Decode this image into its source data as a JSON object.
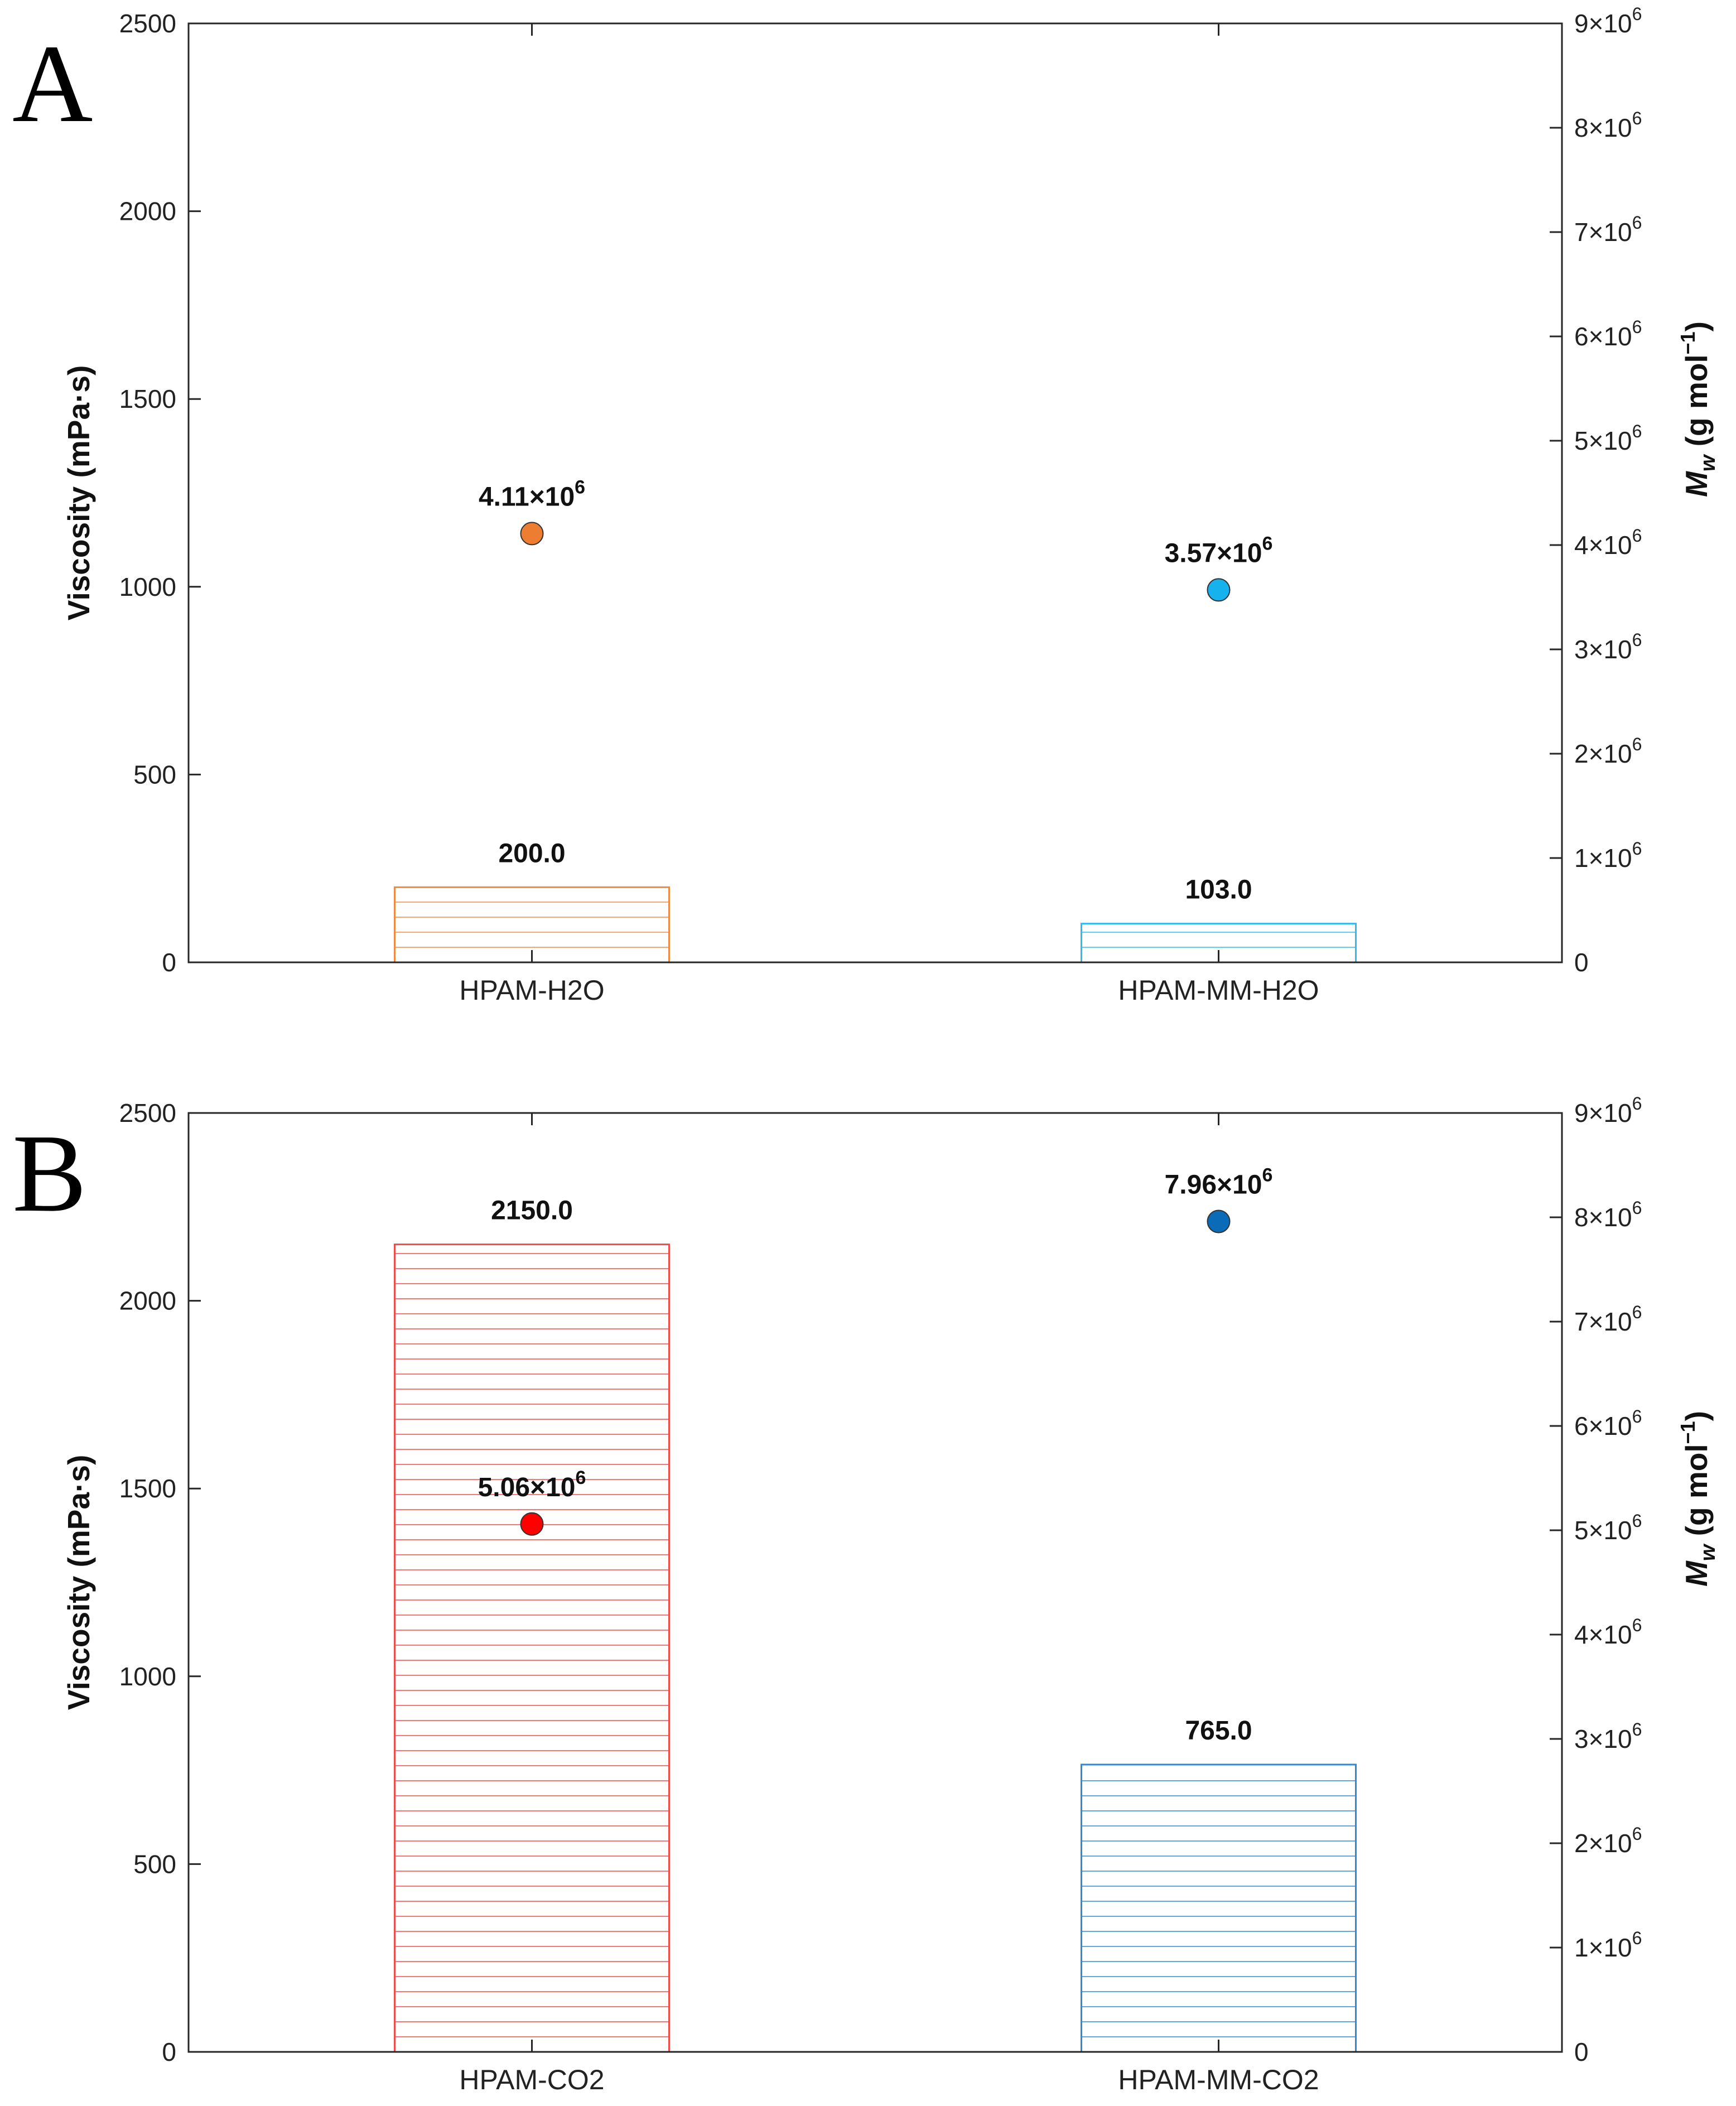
{
  "chart_data": [
    {
      "panel_label": "A",
      "type": "bar",
      "categories": [
        "HPAM-H2O",
        "HPAM-MM-H2O"
      ],
      "ylabel": "Viscosity (mPa·s)",
      "ylim": [
        0,
        2500
      ],
      "yticks": [
        0,
        500,
        1000,
        1500,
        2000,
        2500
      ],
      "bars": [
        {
          "value": 200.0,
          "label": "200.0",
          "color": "#ed8b45"
        },
        {
          "value": 103.0,
          "label": "103.0",
          "color": "#2ebcf0"
        }
      ],
      "secondary_axis": {
        "label_symbol": "M",
        "label_subscript": "w",
        "label_unit": " (g mol",
        "label_unit_exp": "−1",
        "label_close": ")",
        "ylim_exponent_base": 6,
        "ylim": [
          0,
          9
        ],
        "ticks": [
          {
            "value": 0,
            "mant": "0",
            "exp": ""
          },
          {
            "value": 1,
            "mant": "1×10",
            "exp": "6"
          },
          {
            "value": 2,
            "mant": "2×10",
            "exp": "6"
          },
          {
            "value": 3,
            "mant": "3×10",
            "exp": "6"
          },
          {
            "value": 4,
            "mant": "4×10",
            "exp": "6"
          },
          {
            "value": 5,
            "mant": "5×10",
            "exp": "6"
          },
          {
            "value": 6,
            "mant": "6×10",
            "exp": "6"
          },
          {
            "value": 7,
            "mant": "7×10",
            "exp": "6"
          },
          {
            "value": 8,
            "mant": "8×10",
            "exp": "6"
          },
          {
            "value": 9,
            "mant": "9×10",
            "exp": "6"
          }
        ]
      },
      "points": [
        {
          "category": "HPAM-H2O",
          "value": 4.11,
          "mant": "4.11×10",
          "exp": "6",
          "color": "#ed7d31"
        },
        {
          "category": "HPAM-MM-H2O",
          "value": 3.57,
          "mant": "3.57×10",
          "exp": "6",
          "color": "#16b2ee"
        }
      ]
    },
    {
      "panel_label": "B",
      "type": "bar",
      "categories": [
        "HPAM-CO2",
        "HPAM-MM-CO2"
      ],
      "ylabel": "Viscosity (mPa·s)",
      "ylim": [
        0,
        2500
      ],
      "yticks": [
        0,
        500,
        1000,
        1500,
        2000,
        2500
      ],
      "bars": [
        {
          "value": 2150.0,
          "label": "2150.0",
          "color": "#f04b4b"
        },
        {
          "value": 765.0,
          "label": "765.0",
          "color": "#2f89d4"
        }
      ],
      "secondary_axis": {
        "label_symbol": "M",
        "label_subscript": "w",
        "label_unit": " (g mol",
        "label_unit_exp": "−1",
        "label_close": ")",
        "ylim_exponent_base": 6,
        "ylim": [
          0,
          9
        ],
        "ticks": [
          {
            "value": 0,
            "mant": "0",
            "exp": ""
          },
          {
            "value": 1,
            "mant": "1×10",
            "exp": "6"
          },
          {
            "value": 2,
            "mant": "2×10",
            "exp": "6"
          },
          {
            "value": 3,
            "mant": "3×10",
            "exp": "6"
          },
          {
            "value": 4,
            "mant": "4×10",
            "exp": "6"
          },
          {
            "value": 5,
            "mant": "5×10",
            "exp": "6"
          },
          {
            "value": 6,
            "mant": "6×10",
            "exp": "6"
          },
          {
            "value": 7,
            "mant": "7×10",
            "exp": "6"
          },
          {
            "value": 8,
            "mant": "8×10",
            "exp": "6"
          },
          {
            "value": 9,
            "mant": "9×10",
            "exp": "6"
          }
        ]
      },
      "points": [
        {
          "category": "HPAM-CO2",
          "value": 5.06,
          "mant": "5.06×10",
          "exp": "6",
          "color": "#ff0000"
        },
        {
          "category": "HPAM-MM-CO2",
          "value": 7.96,
          "mant": "7.96×10",
          "exp": "6",
          "color": "#0a6cb8"
        }
      ]
    }
  ]
}
